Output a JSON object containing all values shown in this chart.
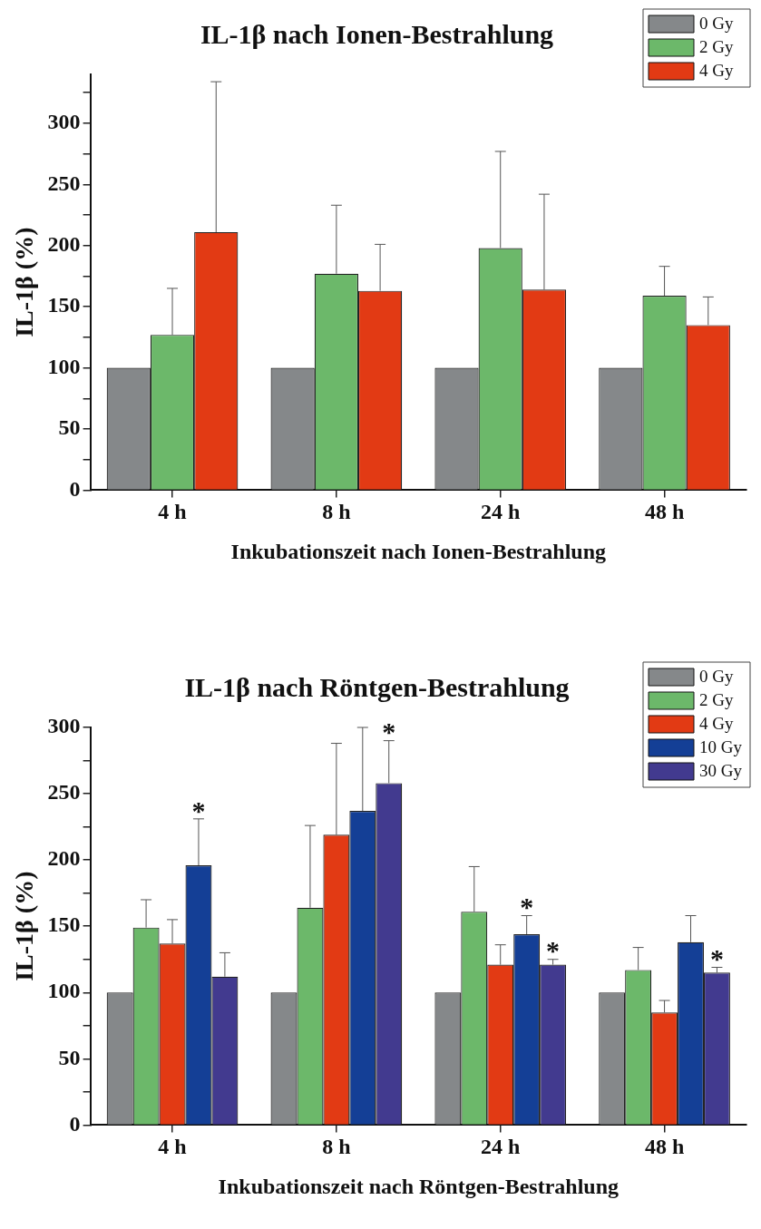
{
  "chart_data": [
    {
      "type": "bar",
      "title": "IL-1β nach Ionen-Bestrahlung",
      "xlabel": "Inkubationszeit nach Ionen-Bestrahlung",
      "ylabel": "IL-1β (%)",
      "categories": [
        "4 h",
        "8 h",
        "24 h",
        "48 h"
      ],
      "series": [
        {
          "name": "0 Gy",
          "color": "#85888a",
          "values": [
            100,
            100,
            100,
            100
          ]
        },
        {
          "name": "2 Gy",
          "color": "#6cb86a",
          "values": [
            127,
            177,
            198,
            159
          ],
          "errors": [
            [
              127,
              165
            ],
            [
              177,
              233
            ],
            [
              198,
              277
            ],
            [
              159,
              183
            ]
          ]
        },
        {
          "name": "4 Gy",
          "color": "#e23a14",
          "values": [
            211,
            163,
            164,
            135
          ],
          "errors": [
            [
              211,
              334
            ],
            [
              163,
              201
            ],
            [
              164,
              242
            ],
            [
              135,
              158
            ]
          ]
        }
      ],
      "ylim": [
        0,
        340
      ],
      "yticks": [
        0,
        {
          "value": 25,
          "label": null
        },
        50,
        {
          "value": 75,
          "label": null
        },
        100,
        {
          "value": 125,
          "label": null
        },
        150,
        {
          "value": 175,
          "label": null
        },
        200,
        {
          "value": 225,
          "label": null
        },
        250,
        {
          "value": 275,
          "label": null
        },
        300,
        {
          "value": 325,
          "label": null
        }
      ],
      "grid": false,
      "legend": "top right"
    },
    {
      "type": "bar",
      "title": "IL-1β nach Röntgen-Bestrahlung",
      "xlabel": "Inkubationszeit nach Röntgen-Bestrahlung",
      "ylabel": "IL-1β (%)",
      "categories": [
        "4 h",
        "8 h",
        "24 h",
        "48 h"
      ],
      "series": [
        {
          "name": "0 Gy",
          "color": "#85888a",
          "values": [
            100,
            100,
            100,
            100
          ]
        },
        {
          "name": "2 Gy",
          "color": "#6cb86a",
          "values": [
            149,
            164,
            161,
            117
          ],
          "errors": [
            [
              149,
              170
            ],
            [
              164,
              226
            ],
            [
              161,
              195
            ],
            [
              117,
              134
            ]
          ]
        },
        {
          "name": "4 Gy",
          "color": "#e23a14",
          "values": [
            137,
            219,
            121,
            85
          ],
          "errors": [
            [
              137,
              155
            ],
            [
              219,
              288
            ],
            [
              121,
              136
            ],
            [
              85,
              94
            ]
          ]
        },
        {
          "name": "10 Gy",
          "color": "#143f96",
          "values": [
            196,
            237,
            144,
            138
          ],
          "errors": [
            [
              196,
              231
            ],
            [
              237,
              300
            ],
            [
              144,
              158
            ],
            [
              138,
              158
            ]
          ],
          "value_labels": [
            "*",
            null,
            "*",
            null
          ]
        },
        {
          "name": "30 Gy",
          "color": "#423a8f",
          "values": [
            112,
            258,
            121,
            115
          ],
          "errors": [
            [
              112,
              130
            ],
            [
              258,
              290
            ],
            [
              121,
              125
            ],
            [
              115,
              119
            ]
          ],
          "value_labels": [
            null,
            "*",
            "*",
            "*"
          ]
        }
      ],
      "ylim": [
        0,
        300
      ],
      "yticks": [
        0,
        {
          "value": 25,
          "label": null
        },
        50,
        {
          "value": 75,
          "label": null
        },
        100,
        {
          "value": 125,
          "label": null
        },
        150,
        {
          "value": 175,
          "label": null
        },
        200,
        {
          "value": 225,
          "label": null
        },
        250,
        {
          "value": 275,
          "label": null
        },
        300
      ],
      "grid": false,
      "legend": "top right"
    }
  ]
}
